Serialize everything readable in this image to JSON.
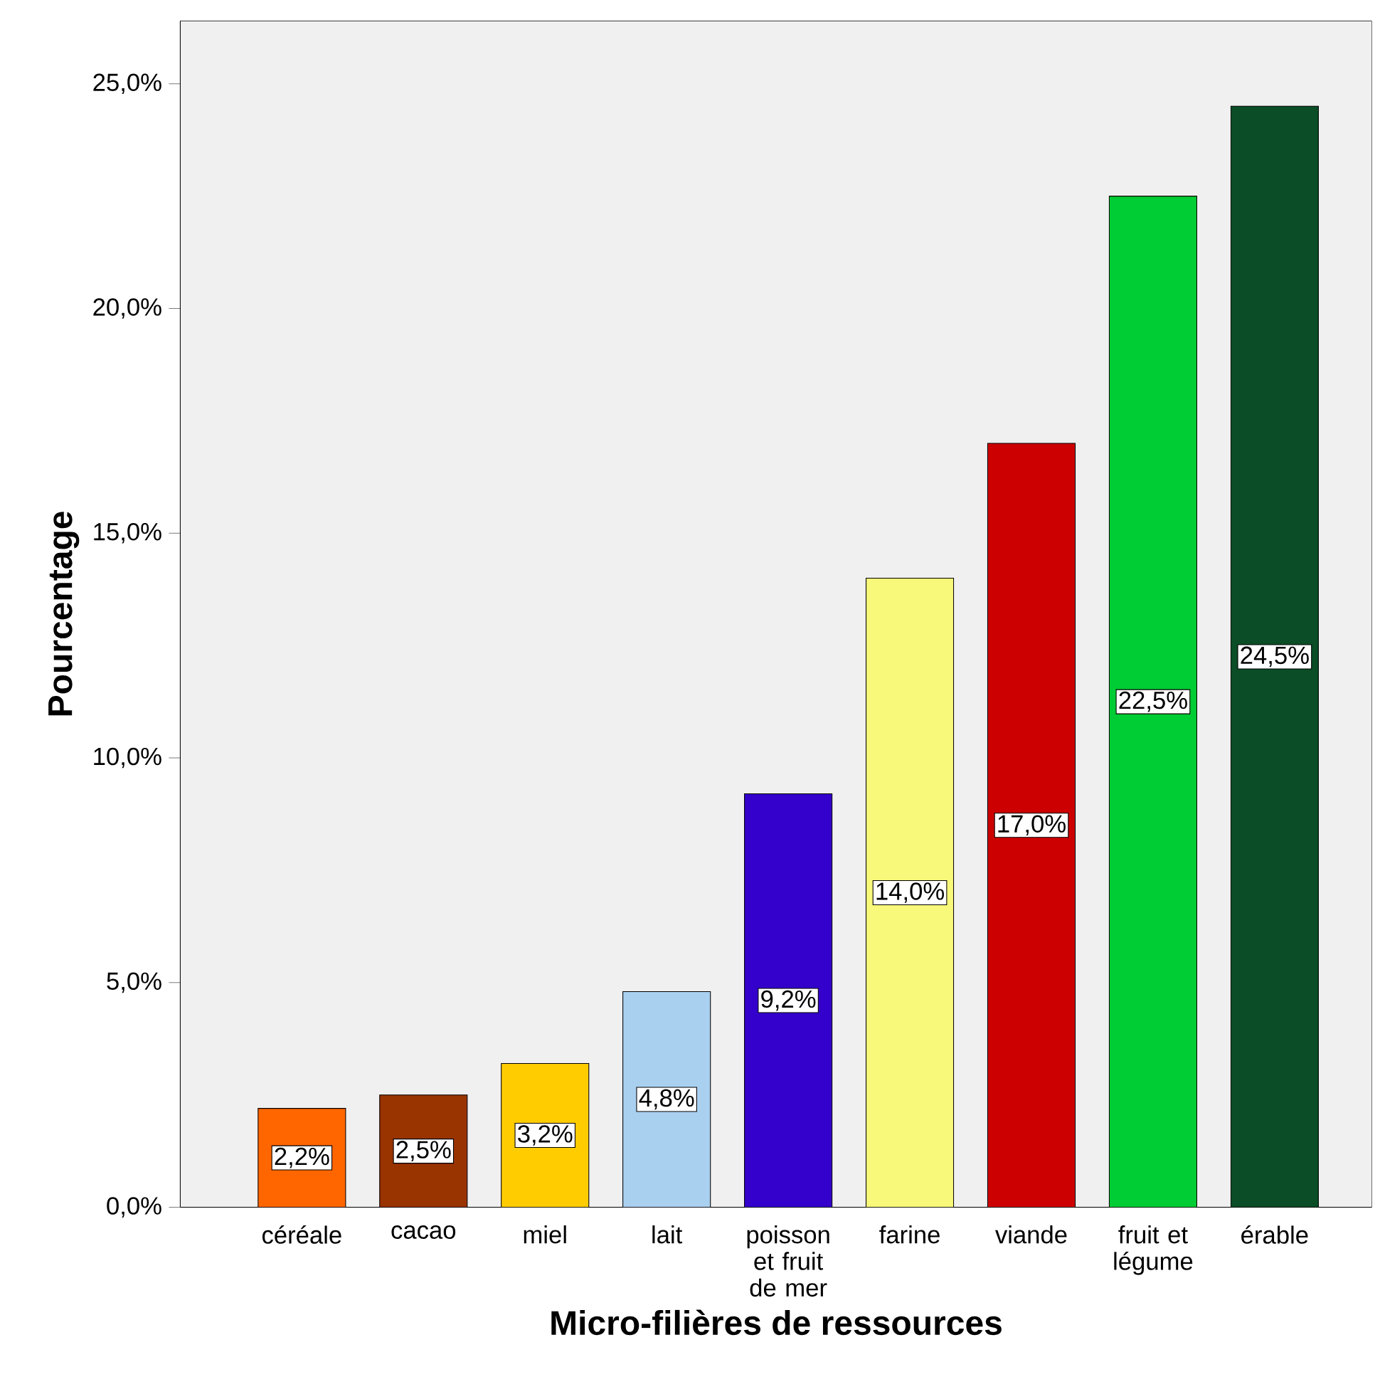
{
  "chart_data": {
    "type": "bar",
    "xlabel": "Micro-filières de ressources",
    "ylabel": "Pourcentage",
    "categories": [
      "céréale",
      "cacao",
      "miel",
      "lait",
      "poisson et fruit de mer",
      "farine",
      "viande",
      "fruit et légume",
      "érable"
    ],
    "values": [
      2.2,
      2.5,
      3.2,
      4.8,
      9.2,
      14.0,
      17.0,
      22.5,
      24.5
    ],
    "colors": [
      "#ff6600",
      "#993300",
      "#ffcc00",
      "#aad0f0",
      "#3300cc",
      "#f8f87a",
      "#cc0000",
      "#00cc33",
      "#0a4d26"
    ],
    "value_labels": [
      "2,2%",
      "2,5%",
      "3,2%",
      "4,8%",
      "9,2%",
      "14,0%",
      "17,0%",
      "22,5%",
      "24,5%"
    ],
    "ylim": [
      0,
      26.4
    ],
    "yticks": [
      {
        "value": 0,
        "label": "0,0%"
      },
      {
        "value": 5,
        "label": "5,0%"
      },
      {
        "value": 10,
        "label": "10,0%"
      },
      {
        "value": 15,
        "label": "15,0%"
      },
      {
        "value": 20,
        "label": "20,0%"
      },
      {
        "value": 25,
        "label": "25,0%"
      }
    ]
  }
}
